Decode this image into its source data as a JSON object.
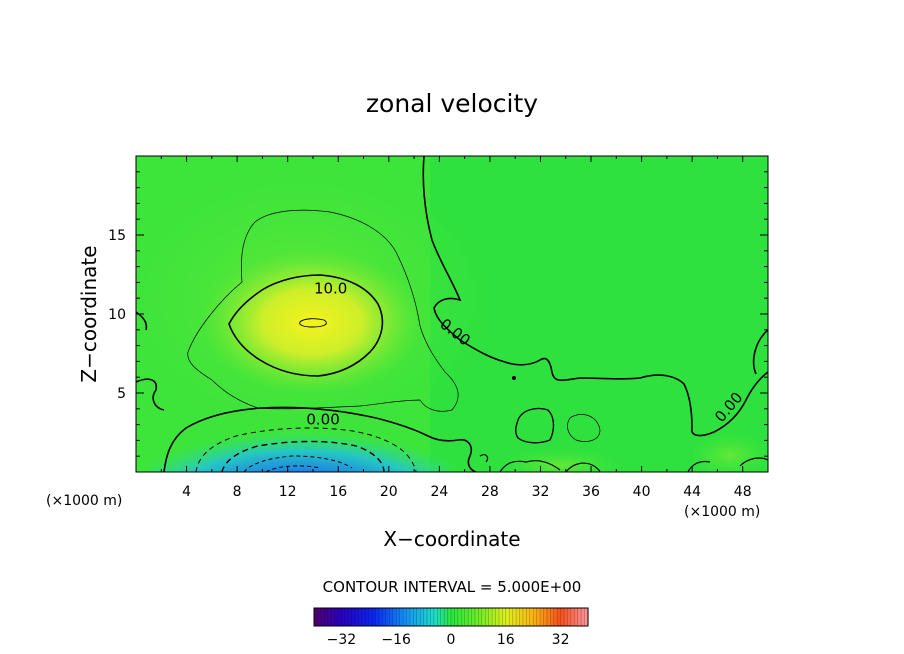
{
  "chart_data": {
    "type": "heatmap",
    "title": "zonal velocity",
    "xlabel": "X−coordinate",
    "ylabel": "Z−coordinate",
    "x_unit_left": "(×1000 m)",
    "x_unit_right": "(×1000 m)",
    "xlim": [
      0,
      50
    ],
    "ylim": [
      0,
      20
    ],
    "x_ticks": [
      4,
      8,
      12,
      16,
      20,
      24,
      28,
      32,
      36,
      40,
      44,
      48
    ],
    "y_ticks": [
      5,
      10,
      15
    ],
    "contour_interval_text": "CONTOUR INTERVAL = 5.000E+00",
    "contour_labels": [
      {
        "text": "10.0",
        "x": 15.4,
        "y": 11.3
      },
      {
        "text": "0.00",
        "x": 25.0,
        "y": 8.6
      },
      {
        "text": "0.00",
        "x": 14.8,
        "y": 3.0
      },
      {
        "text": "0.00",
        "x": 47.2,
        "y": 3.9
      }
    ],
    "colorbar": {
      "range": [
        -40,
        40
      ],
      "ticks": [
        -32,
        -16,
        0,
        16,
        32
      ],
      "tick_labels": [
        "−32",
        "−16",
        "0",
        "16",
        "32"
      ]
    },
    "colors": {
      "background_field": "#35e63a",
      "core_max": "#f4f01a",
      "core_min": "#1a2cf0"
    }
  }
}
